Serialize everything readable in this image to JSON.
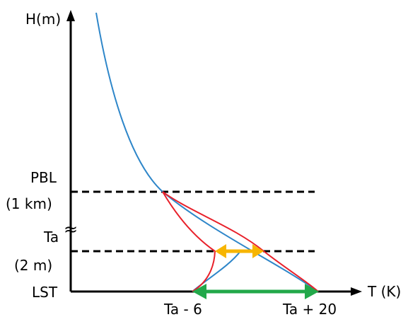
{
  "axes": {
    "y_label": "H(m)",
    "x_label": "T (K)"
  },
  "levels": {
    "pbl_line1": "PBL",
    "pbl_line2": "(1 km)",
    "ta_line1": "Ta",
    "ta_line2": "(2 m)",
    "lst": "LST",
    "break_mark": "≈"
  },
  "x_ticks": {
    "left": "Ta - 6",
    "right": "Ta + 20"
  },
  "colors": {
    "profile_blue": "#2E86C9",
    "bound_red": "#E8202A",
    "range_green": "#22A84A",
    "range_orange": "#F7B500",
    "axis_black": "#000000"
  }
}
